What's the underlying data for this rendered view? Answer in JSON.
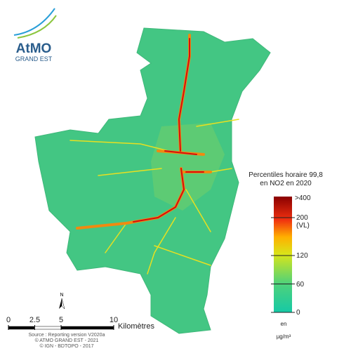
{
  "logo": {
    "name": "AtMO",
    "region": "GRAND EST"
  },
  "legend": {
    "title": [
      "Percentiles horaire 99,8",
      "en NO2 en 2020"
    ],
    "range": [
      0,
      200
    ],
    "ticks": [
      0,
      60,
      120,
      {
        "value": 200,
        "label": "200\n(VL)"
      }
    ],
    "max_label": ">400",
    "unit": [
      "en",
      "µg/m³"
    ]
  },
  "scale_bar": {
    "ticks": [
      0,
      2.5,
      5,
      10
    ],
    "unit": "Kilomètres"
  },
  "north": "N",
  "sources": [
    "Source : Reporting version V2020a",
    "© ATMO GRAND EST - 2021",
    "© IGN - BDTOPO - 2017"
  ]
}
